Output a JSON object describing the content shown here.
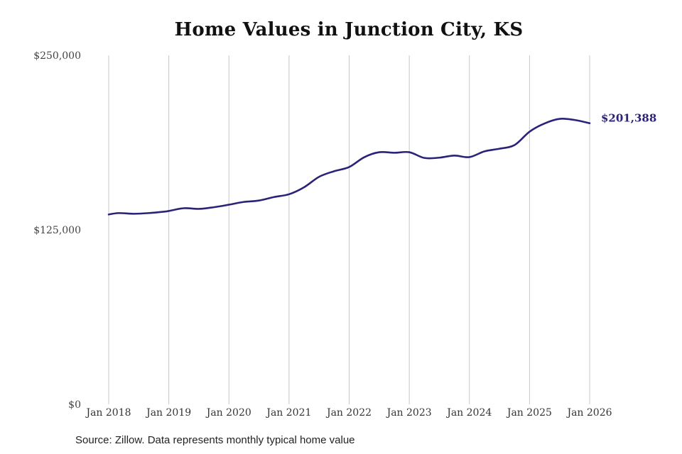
{
  "chart_data": {
    "type": "line",
    "title": "Home Values in Junction City, KS",
    "xlabel": "",
    "ylabel": "",
    "ylim": [
      0,
      250000
    ],
    "yticks": [
      {
        "value": 0,
        "label": "$0"
      },
      {
        "value": 125000,
        "label": "$125,000"
      },
      {
        "value": 250000,
        "label": "$250,000"
      }
    ],
    "xticks": [
      "Jan 2018",
      "Jan 2019",
      "Jan 2020",
      "Jan 2021",
      "Jan 2022",
      "Jan 2023",
      "Jan 2024",
      "Jan 2025",
      "Jan 2026"
    ],
    "grid": "vertical",
    "line_color": "#2a2378",
    "series": [
      {
        "x": [
          "2018-01",
          "2018-03",
          "2018-06",
          "2018-09",
          "2018-12",
          "2019-01",
          "2019-04",
          "2019-07",
          "2019-10",
          "2020-01",
          "2020-04",
          "2020-07",
          "2020-10",
          "2021-01",
          "2021-04",
          "2021-07",
          "2021-10",
          "2022-01",
          "2022-04",
          "2022-07",
          "2022-10",
          "2023-01",
          "2023-04",
          "2023-07",
          "2023-10",
          "2024-01",
          "2024-04",
          "2024-07",
          "2024-10",
          "2025-01",
          "2025-04",
          "2025-07",
          "2025-10",
          "2026-01"
        ],
        "values": [
          136000,
          137000,
          136500,
          137000,
          138000,
          138500,
          140500,
          140000,
          141200,
          143000,
          145000,
          146000,
          148500,
          150500,
          155500,
          163000,
          167000,
          170000,
          177000,
          180600,
          180200,
          180600,
          176500,
          176700,
          178200,
          177100,
          181200,
          183100,
          185700,
          195300,
          201200,
          204500,
          203700,
          201388
        ]
      }
    ],
    "end_label": "$201,388",
    "source": "Source: Zillow. Data represents monthly typical home value"
  }
}
